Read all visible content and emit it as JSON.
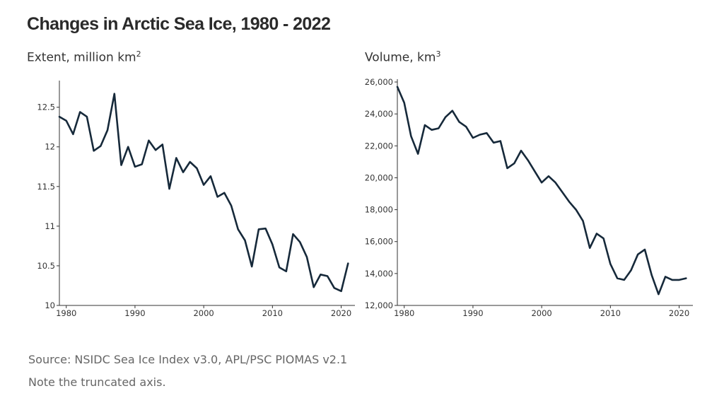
{
  "title": "Changes in Arctic Sea Ice, 1980 - 2022",
  "footer": {
    "source": "Source: NSIDC Sea Ice Index v3.0, APL/PSC PIOMAS v2.1",
    "note": "Note the truncated axis."
  },
  "colors": {
    "line": "#16293a",
    "axis": "#333333",
    "title": "#2a2a2a",
    "footer": "#666666"
  },
  "chart_data": [
    {
      "type": "line",
      "title": "Extent, million km",
      "title_sup": "2",
      "ylim": [
        10,
        12.8
      ],
      "xlim": [
        1979,
        2022
      ],
      "yticks": [
        10,
        10.5,
        11,
        11.5,
        12,
        12.5
      ],
      "ytick_labels": [
        "10",
        "10.5",
        "11",
        "11.5",
        "12",
        "12.5"
      ],
      "xticks": [
        1980,
        1990,
        2000,
        2010,
        2020
      ],
      "xtick_labels": [
        "1980",
        "1990",
        "2000",
        "2010",
        "2020"
      ],
      "grid": false,
      "series": [
        {
          "x": [
            1979,
            1980,
            1981,
            1982,
            1983,
            1984,
            1985,
            1986,
            1987,
            1988,
            1989,
            1990,
            1991,
            1992,
            1993,
            1994,
            1995,
            1996,
            1997,
            1998,
            1999,
            2000,
            2001,
            2002,
            2003,
            2004,
            2005,
            2006,
            2007,
            2008,
            2009,
            2010,
            2011,
            2012,
            2013,
            2014,
            2015,
            2016,
            2017,
            2018,
            2019,
            2020,
            2021
          ],
          "values": [
            12.38,
            12.33,
            12.16,
            12.44,
            12.38,
            11.95,
            12.01,
            12.21,
            12.67,
            11.77,
            12.0,
            11.75,
            11.78,
            12.08,
            11.96,
            12.03,
            11.47,
            11.86,
            11.68,
            11.81,
            11.73,
            11.52,
            11.63,
            11.37,
            11.42,
            11.26,
            10.96,
            10.82,
            10.49,
            10.96,
            10.97,
            10.77,
            10.48,
            10.43,
            10.9,
            10.8,
            10.61,
            10.23,
            10.39,
            10.37,
            10.22,
            10.18,
            10.53
          ]
        }
      ]
    },
    {
      "type": "line",
      "title": "Volume, km",
      "title_sup": "3",
      "ylim": [
        12000,
        26000
      ],
      "xlim": [
        1979,
        2022
      ],
      "yticks": [
        12000,
        14000,
        16000,
        18000,
        20000,
        22000,
        24000,
        26000
      ],
      "ytick_labels": [
        "12,000",
        "14,000",
        "16,000",
        "18,000",
        "20,000",
        "22,000",
        "24,000",
        "26,000"
      ],
      "xticks": [
        1980,
        1990,
        2000,
        2010,
        2020
      ],
      "xtick_labels": [
        "1980",
        "1990",
        "2000",
        "2010",
        "2020"
      ],
      "grid": false,
      "series": [
        {
          "x": [
            1979,
            1980,
            1981,
            1982,
            1983,
            1984,
            1985,
            1986,
            1987,
            1988,
            1989,
            1990,
            1991,
            1992,
            1993,
            1994,
            1995,
            1996,
            1997,
            1998,
            1999,
            2000,
            2001,
            2002,
            2003,
            2004,
            2005,
            2006,
            2007,
            2008,
            2009,
            2010,
            2011,
            2012,
            2013,
            2014,
            2015,
            2016,
            2017,
            2018,
            2019,
            2020,
            2021
          ],
          "values": [
            25700,
            24700,
            22600,
            21500,
            23300,
            23000,
            23100,
            23800,
            24200,
            23500,
            23200,
            22500,
            22700,
            22800,
            22200,
            22300,
            20600,
            20900,
            21700,
            21100,
            20400,
            19700,
            20100,
            19700,
            19100,
            18500,
            18000,
            17300,
            15600,
            16500,
            16200,
            14600,
            13700,
            13600,
            14200,
            15200,
            15500,
            13900,
            12700,
            13800,
            13600,
            13600,
            13700
          ]
        }
      ]
    }
  ]
}
